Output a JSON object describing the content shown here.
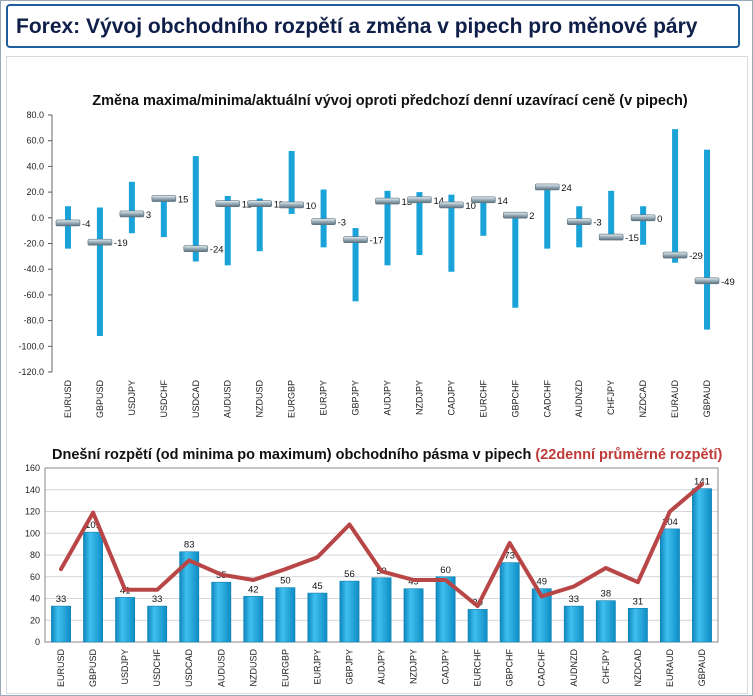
{
  "header": {
    "title": "Forex: Vývoj obchodního rozpětí a změna v pipech pro měnové páry"
  },
  "colors": {
    "bar": "#1aa3d8",
    "bar_edge": "#0f7fb0",
    "marker": "#7e939f",
    "line": "#b94646",
    "frame": "#1f5e9a"
  },
  "chart_data": [
    {
      "type": "bar",
      "title": "Změna maxima/minima/aktuální vývoj oproti předchozí denní uzavírací ceně (v pipech)",
      "ylim": [
        -120,
        80
      ],
      "yticks": [
        "80.0",
        "60.0",
        "40.0",
        "20.0",
        "0.0",
        "-20.0",
        "-40.0",
        "-60.0",
        "-80.0",
        "-100.0",
        "-120.0"
      ],
      "categories": [
        "EURUSD",
        "GBPUSD",
        "USDJPY",
        "USDCHF",
        "USDCAD",
        "AUDUSD",
        "NZDUSD",
        "EURGBP",
        "EURJPY",
        "GBPJPY",
        "AUDJPY",
        "NZDJPY",
        "CADJPY",
        "EURCHF",
        "GBPCHF",
        "CADCHF",
        "AUDNZD",
        "CHFJPY",
        "NZDCAD",
        "EURAUD",
        "GBPAUD"
      ],
      "high": [
        9,
        8,
        28,
        17,
        48,
        17,
        15,
        52,
        22,
        -8,
        21,
        20,
        18,
        15,
        2,
        25,
        9,
        21,
        9,
        69,
        53
      ],
      "low": [
        -24,
        -92,
        -12,
        -15,
        -34,
        -37,
        -26,
        3,
        -23,
        -65,
        -37,
        -29,
        -42,
        -14,
        -70,
        -24,
        -23,
        -17,
        -21,
        -35,
        -87
      ],
      "current": [
        -4,
        -19,
        3,
        15,
        -24,
        11,
        11,
        10,
        -3,
        -17,
        13,
        14,
        10,
        14,
        2,
        24,
        -3,
        -15,
        0,
        -29,
        -49
      ],
      "labels": [
        "-4",
        "-19",
        "3",
        "15",
        "-24",
        "11",
        "11",
        "10",
        "-3",
        "-17",
        "13",
        "14",
        "10",
        "14",
        "2",
        "24",
        "-3",
        "-15",
        "0",
        "-29",
        "-49"
      ]
    },
    {
      "type": "bar",
      "title": "Dnešní rozpětí (od minima po maximum) obchodního pásma v pipech",
      "title_suffix": "(22denní průměrné rozpětí)",
      "ylim": [
        0,
        160
      ],
      "yticks": [
        "160",
        "140",
        "120",
        "100",
        "80",
        "60",
        "40",
        "20",
        "0"
      ],
      "categories": [
        "EURUSD",
        "GBPUSD",
        "USDJPY",
        "USDCHF",
        "USDCAD",
        "AUDUSD",
        "NZDUSD",
        "EURGBP",
        "EURJPY",
        "GBPJPY",
        "AUDJPY",
        "NZDJPY",
        "CADJPY",
        "EURCHF",
        "GBPCHF",
        "CADCHF",
        "AUDNZD",
        "CHFJPY",
        "NZDCAD",
        "EURAUD",
        "GBPAUD"
      ],
      "series": [
        {
          "values": [
            33,
            101,
            41,
            33,
            83,
            55,
            42,
            50,
            45,
            56,
            59,
            49,
            60,
            30,
            73,
            49,
            33,
            38,
            31,
            104,
            141
          ]
        },
        {
          "values": [
            67,
            119,
            48,
            48,
            75,
            62,
            57,
            67,
            78,
            108,
            65,
            57,
            57,
            33,
            91,
            42,
            51,
            68,
            55,
            120,
            145
          ]
        }
      ],
      "labels": [
        "33",
        "101",
        "41",
        "33",
        "83",
        "55",
        "42",
        "50",
        "45",
        "56",
        "59",
        "49",
        "60",
        "30",
        "73",
        "49",
        "33",
        "38",
        "31",
        "104",
        "141"
      ]
    }
  ]
}
